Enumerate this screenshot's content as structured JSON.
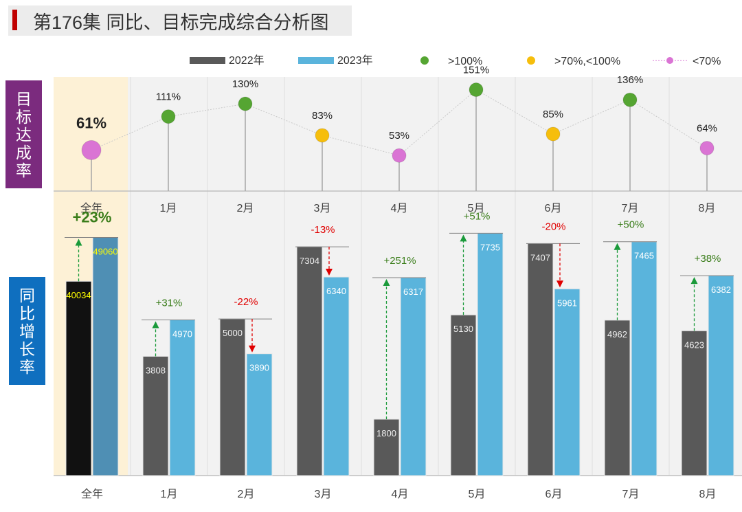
{
  "title": "第176集 同比、目标完成综合分析图",
  "side_labels": {
    "top": "目标达成率",
    "bottom": "同比增长率"
  },
  "legend": {
    "y2022": "2022年",
    "y2023": "2023年",
    "over100": ">100%",
    "mid": ">70%,<100%",
    "under70": "<70%"
  },
  "colors": {
    "bar2022": "#595959",
    "bar2023": "#5ab4dc",
    "total2022": "#111111",
    "total2023": "#4f8fb4",
    "green": "#55a532",
    "yellow": "#f6be0c",
    "pink": "#da74d4",
    "highlight": "#fdf1d6",
    "up": "#1a9a3a",
    "down": "#e00000",
    "up_text": "#3a7d1a",
    "down_text": "#e00000",
    "total_label": "#ffff00"
  },
  "chart_data": [
    {
      "type": "line",
      "title": "目标达成率",
      "categories": [
        "全年",
        "1月",
        "2月",
        "3月",
        "4月",
        "5月",
        "6月",
        "7月",
        "8月"
      ],
      "values": [
        61,
        111,
        130,
        83,
        53,
        151,
        85,
        136,
        64
      ],
      "labels": [
        "61%",
        "111%",
        "130%",
        "83%",
        "53%",
        "151%",
        "85%",
        "136%",
        "64%"
      ],
      "thresholds": {
        "green": ">100%",
        "yellow": ">70%,<100%",
        "pink": "<70%"
      },
      "ylim": [
        0,
        170
      ]
    },
    {
      "type": "bar",
      "title": "同比增长率",
      "categories": [
        "全年",
        "1月",
        "2月",
        "3月",
        "4月",
        "5月",
        "6月",
        "7月",
        "8月"
      ],
      "series": [
        {
          "name": "2022年",
          "values": [
            40034,
            3808,
            5000,
            7304,
            1800,
            5130,
            7407,
            4962,
            4623
          ]
        },
        {
          "name": "2023年",
          "values": [
            49060,
            4970,
            3890,
            6340,
            6317,
            7735,
            5961,
            7465,
            6382
          ]
        }
      ],
      "growth_labels": [
        "+23%",
        "+31%",
        "-22%",
        "-13%",
        "+251%",
        "+51%",
        "-20%",
        "+50%",
        "+38%"
      ],
      "month_ylim": [
        0,
        8600
      ],
      "total_ylim": [
        0,
        55500
      ]
    }
  ]
}
